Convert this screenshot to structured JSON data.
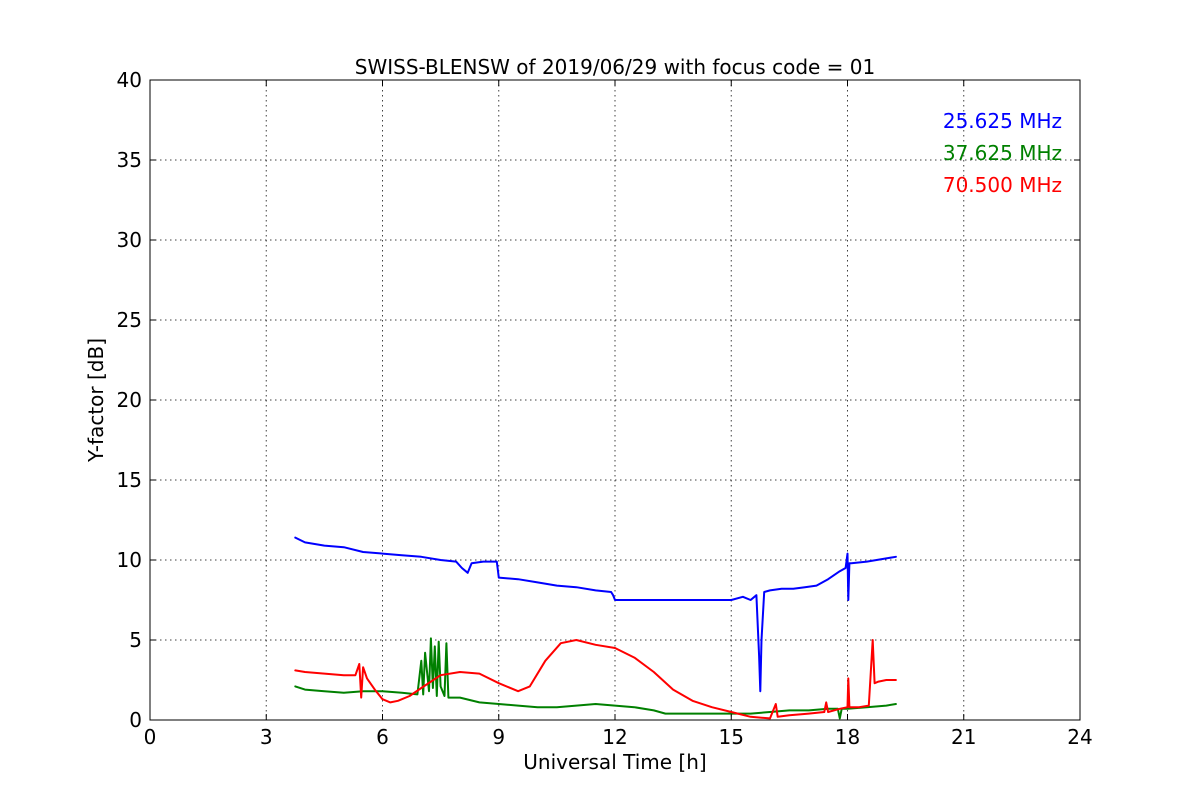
{
  "chart_data": {
    "type": "line",
    "title": "SWISS-BLENSW of 2019/06/29 with focus code = 01",
    "xlabel": "Universal Time [h]",
    "ylabel": "Y-factor [dB]",
    "xlim": [
      0,
      24
    ],
    "ylim": [
      0,
      40
    ],
    "xticks": [
      0,
      3,
      6,
      9,
      12,
      15,
      18,
      21,
      24
    ],
    "yticks": [
      0,
      5,
      10,
      15,
      20,
      25,
      30,
      35,
      40
    ],
    "grid": true,
    "legend_position": "top-right",
    "series": [
      {
        "name": "25.625 MHz",
        "color": "#0000ff",
        "x": [
          3.75,
          4.0,
          4.5,
          5.0,
          5.5,
          6.0,
          6.5,
          7.0,
          7.5,
          7.9,
          8.05,
          8.2,
          8.3,
          8.6,
          8.95,
          9.0,
          9.5,
          10.0,
          10.5,
          11.0,
          11.5,
          11.9,
          11.95,
          12.0,
          12.5,
          13.0,
          13.5,
          14.0,
          14.5,
          15.0,
          15.3,
          15.5,
          15.65,
          15.72,
          15.75,
          15.78,
          15.85,
          16.0,
          16.3,
          16.6,
          16.9,
          17.2,
          17.5,
          17.8,
          17.95,
          18.0,
          18.02,
          18.05,
          18.1,
          18.5,
          19.0,
          19.25
        ],
        "y": [
          11.4,
          11.1,
          10.9,
          10.8,
          10.5,
          10.4,
          10.3,
          10.2,
          10.0,
          9.9,
          9.5,
          9.2,
          9.8,
          9.9,
          9.9,
          8.9,
          8.8,
          8.6,
          8.4,
          8.3,
          8.1,
          8.0,
          7.8,
          7.5,
          7.5,
          7.5,
          7.5,
          7.5,
          7.5,
          7.5,
          7.7,
          7.5,
          7.8,
          4.0,
          1.8,
          5.0,
          8.0,
          8.1,
          8.2,
          8.2,
          8.3,
          8.4,
          8.8,
          9.3,
          9.5,
          10.4,
          7.5,
          9.8,
          9.8,
          9.9,
          10.1,
          10.2
        ]
      },
      {
        "name": "37.625 MHz",
        "color": "#008000",
        "x": [
          3.75,
          4.0,
          4.5,
          5.0,
          5.5,
          6.0,
          6.5,
          6.9,
          7.0,
          7.05,
          7.1,
          7.2,
          7.25,
          7.3,
          7.35,
          7.4,
          7.45,
          7.5,
          7.6,
          7.65,
          7.7,
          7.8,
          8.0,
          8.5,
          9.0,
          9.5,
          10.0,
          10.5,
          11.0,
          11.5,
          12.0,
          12.5,
          13.0,
          13.3,
          13.5,
          14.0,
          14.5,
          15.0,
          15.5,
          16.0,
          16.5,
          17.0,
          17.5,
          17.75,
          17.8,
          17.85,
          18.0,
          18.5,
          19.0,
          19.25
        ],
        "y": [
          2.1,
          1.9,
          1.8,
          1.7,
          1.8,
          1.8,
          1.7,
          1.6,
          3.7,
          1.6,
          4.2,
          1.8,
          5.1,
          2.0,
          4.6,
          1.5,
          4.9,
          2.1,
          1.5,
          4.8,
          1.4,
          1.4,
          1.4,
          1.1,
          1.0,
          0.9,
          0.8,
          0.8,
          0.9,
          1.0,
          0.9,
          0.8,
          0.6,
          0.4,
          0.4,
          0.4,
          0.4,
          0.4,
          0.4,
          0.5,
          0.6,
          0.6,
          0.7,
          0.7,
          0.1,
          0.7,
          0.7,
          0.8,
          0.9,
          1.0
        ]
      },
      {
        "name": "70.500 MHz",
        "color": "#ff0000",
        "x": [
          3.75,
          4.0,
          4.5,
          5.0,
          5.3,
          5.4,
          5.45,
          5.5,
          5.6,
          5.8,
          6.0,
          6.2,
          6.4,
          6.7,
          7.0,
          7.5,
          8.0,
          8.5,
          9.0,
          9.5,
          9.8,
          10.2,
          10.6,
          11.0,
          11.5,
          12.0,
          12.5,
          13.0,
          13.5,
          14.0,
          14.5,
          15.0,
          15.5,
          16.0,
          16.15,
          16.2,
          16.5,
          17.0,
          17.4,
          17.45,
          17.5,
          17.8,
          18.0,
          18.02,
          18.05,
          18.3,
          18.55,
          18.6,
          18.65,
          18.7,
          18.8,
          19.0,
          19.25
        ],
        "y": [
          3.1,
          3.0,
          2.9,
          2.8,
          2.8,
          3.5,
          1.4,
          3.3,
          2.6,
          1.9,
          1.3,
          1.1,
          1.2,
          1.5,
          2.0,
          2.8,
          3.0,
          2.9,
          2.3,
          1.8,
          2.1,
          3.7,
          4.8,
          5.0,
          4.7,
          4.5,
          3.9,
          3.0,
          1.9,
          1.2,
          0.8,
          0.5,
          0.2,
          0.1,
          1.0,
          0.2,
          0.3,
          0.4,
          0.5,
          1.1,
          0.5,
          0.7,
          0.8,
          2.6,
          0.8,
          0.8,
          0.9,
          3.0,
          5.0,
          2.3,
          2.4,
          2.5,
          2.5
        ]
      }
    ]
  }
}
